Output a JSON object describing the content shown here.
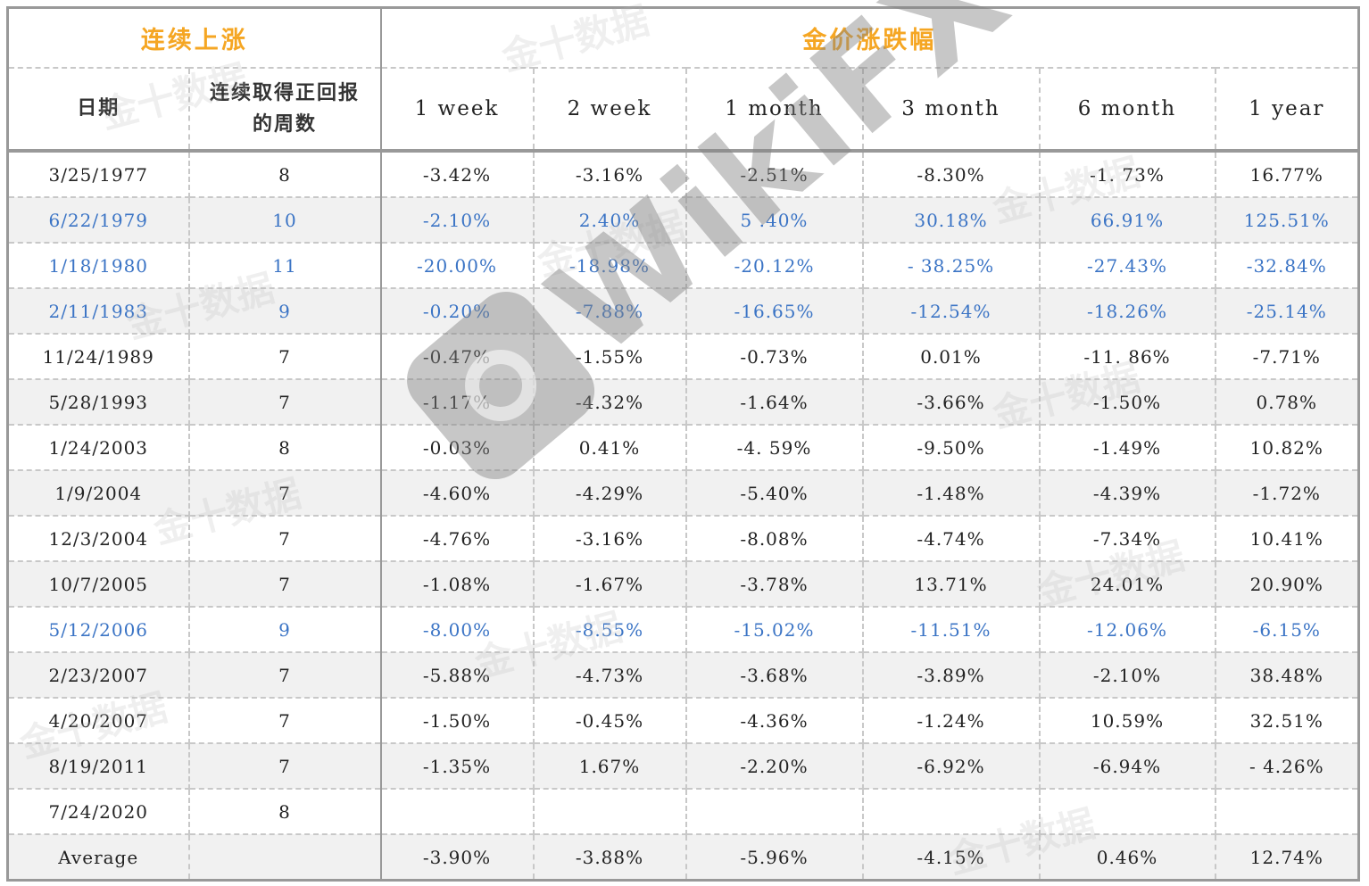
{
  "header": {
    "group_left": "连续上涨",
    "group_right": "金价涨跌幅",
    "col_date": "日期",
    "col_weeks": "连续取得正回报的周数",
    "col_1w": "1 week",
    "col_2w": "2 week",
    "col_1m": "1 month",
    "col_3m": "3 month",
    "col_6m": "6 month",
    "col_1y": "1 year"
  },
  "rows": [
    {
      "date": "3/25/1977",
      "weeks": "8",
      "w1": "-3.42%",
      "w2": "-3.16%",
      "m1": "-2.51%",
      "m3": "-8.30%",
      "m6": "-1. 73%",
      "y1": "16.77%",
      "highlight": false
    },
    {
      "date": "6/22/1979",
      "weeks": "10",
      "w1": "-2.10%",
      "w2": "2.40%",
      "m1": "5 .40%",
      "m3": "30.18%",
      "m6": "66.91%",
      "y1": "125.51%",
      "highlight": true
    },
    {
      "date": "1/18/1980",
      "weeks": "11",
      "w1": "-20.00%",
      "w2": "-18.98%",
      "m1": "-20.12%",
      "m3": "- 38.25%",
      "m6": "-27.43%",
      "y1": "-32.84%",
      "highlight": true
    },
    {
      "date": "2/11/1983",
      "weeks": "9",
      "w1": "-0.20%",
      "w2": "-7.88%",
      "m1": "-16.65%",
      "m3": "-12.54%",
      "m6": "-18.26%",
      "y1": "-25.14%",
      "highlight": true
    },
    {
      "date": "11/24/1989",
      "weeks": "7",
      "w1": "-0.47%",
      "w2": "-1.55%",
      "m1": "-0.73%",
      "m3": "0.01%",
      "m6": "-11. 86%",
      "y1": "-7.71%",
      "highlight": false
    },
    {
      "date": "5/28/1993",
      "weeks": "7",
      "w1": "-1.17%",
      "w2": "-4.32%",
      "m1": "-1.64%",
      "m3": "-3.66%",
      "m6": "-1.50%",
      "y1": "0.78%",
      "highlight": false
    },
    {
      "date": "1/24/2003",
      "weeks": "8",
      "w1": "-0.03%",
      "w2": "0.41%",
      "m1": "-4. 59%",
      "m3": "-9.50%",
      "m6": "-1.49%",
      "y1": "10.82%",
      "highlight": false
    },
    {
      "date": "1/9/2004",
      "weeks": "7",
      "w1": "-4.60%",
      "w2": "-4.29%",
      "m1": "-5.40%",
      "m3": "-1.48%",
      "m6": "-4.39%",
      "y1": "-1.72%",
      "highlight": false
    },
    {
      "date": "12/3/2004",
      "weeks": "7",
      "w1": "-4.76%",
      "w2": "-3.16%",
      "m1": "-8.08%",
      "m3": "-4.74%",
      "m6": "-7.34%",
      "y1": "10.41%",
      "highlight": false
    },
    {
      "date": "10/7/2005",
      "weeks": "7",
      "w1": "-1.08%",
      "w2": "-1.67%",
      "m1": "-3.78%",
      "m3": "13.71%",
      "m6": "24.01%",
      "y1": "20.90%",
      "highlight": false
    },
    {
      "date": "5/12/2006",
      "weeks": "9",
      "w1": "-8.00%",
      "w2": "-8.55%",
      "m1": "-15.02%",
      "m3": "-11.51%",
      "m6": "-12.06%",
      "y1": "-6.15%",
      "highlight": true
    },
    {
      "date": "2/23/2007",
      "weeks": "7",
      "w1": "-5.88%",
      "w2": "-4.73%",
      "m1": "-3.68%",
      "m3": "-3.89%",
      "m6": "-2.10%",
      "y1": "38.48%",
      "highlight": false
    },
    {
      "date": "4/20/2007",
      "weeks": "7",
      "w1": "-1.50%",
      "w2": "-0.45%",
      "m1": "-4.36%",
      "m3": "-1.24%",
      "m6": "10.59%",
      "y1": "32.51%",
      "highlight": false
    },
    {
      "date": "8/19/2011",
      "weeks": "7",
      "w1": "-1.35%",
      "w2": "1.67%",
      "m1": "-2.20%",
      "m3": "-6.92%",
      "m6": "-6.94%",
      "y1": "- 4.26%",
      "highlight": false
    },
    {
      "date": "7/24/2020",
      "weeks": "8",
      "w1": "",
      "w2": "",
      "m1": "",
      "m3": "",
      "m6": "",
      "y1": "",
      "highlight": false
    },
    {
      "date": "Average",
      "weeks": "",
      "w1": "-3.90%",
      "w2": "-3.88%",
      "m1": "-5.96%",
      "m3": "-4.15%",
      "m6": "0.46%",
      "y1": "12.74%",
      "highlight": false
    }
  ],
  "watermarks": {
    "jin10": "金十数据",
    "wikifx": "WikiFX"
  },
  "colors": {
    "group_header": "#f5a623",
    "highlight_text": "#3b74c5",
    "zebra": "#f1f1f1",
    "border": "#999999"
  }
}
